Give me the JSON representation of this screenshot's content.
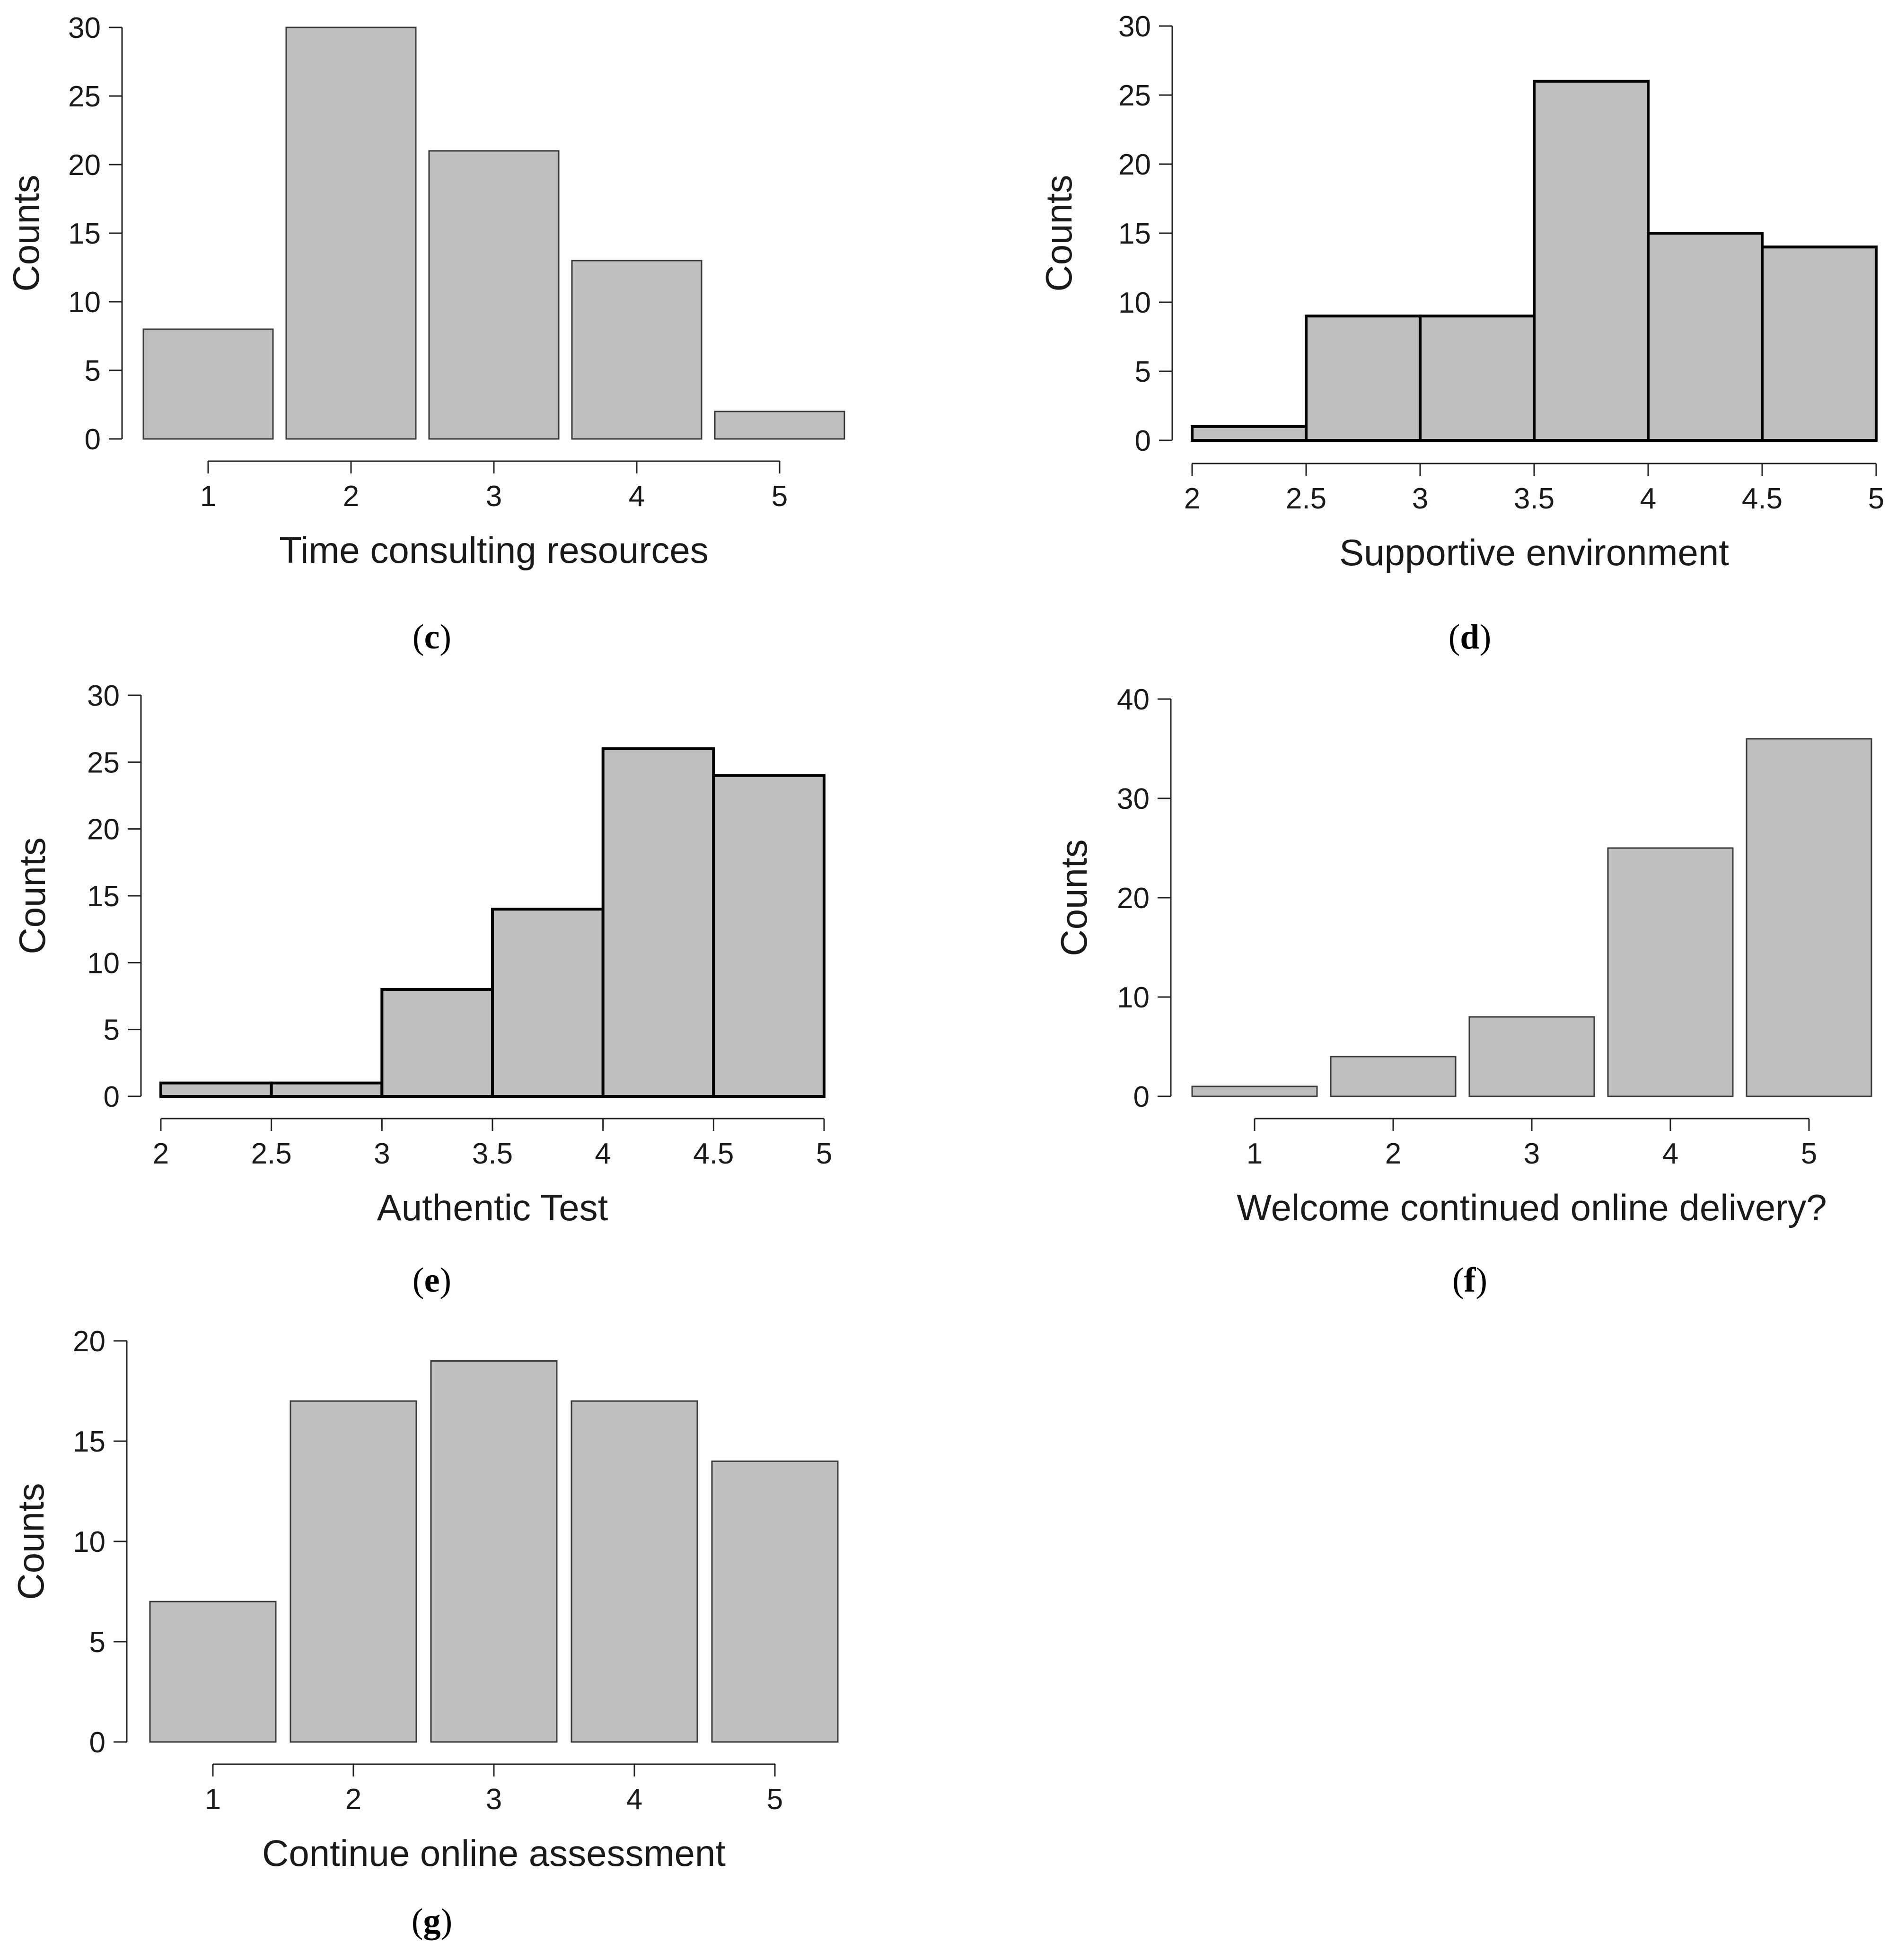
{
  "chart_data": [
    {
      "id": "c",
      "panel_label": "c",
      "type": "bar",
      "xlabel": "Time consulting resources",
      "ylabel": "Counts",
      "categories": [
        "1",
        "2",
        "3",
        "4",
        "5"
      ],
      "values": [
        8,
        30,
        21,
        13,
        2
      ],
      "ylim": [
        0,
        30
      ],
      "yticks": [
        0,
        5,
        10,
        15,
        20,
        25,
        30
      ],
      "grid": false
    },
    {
      "id": "d",
      "panel_label": "d",
      "type": "histogram",
      "xlabel": "Supportive environment",
      "ylabel": "Counts",
      "bin_edges": [
        2,
        2.5,
        3,
        3.5,
        4,
        4.5,
        5
      ],
      "xtick_labels": [
        "2",
        "2.5",
        "3",
        "3.5",
        "4",
        "4.5",
        "5"
      ],
      "values": [
        1,
        9,
        9,
        26,
        15,
        14
      ],
      "ylim": [
        0,
        30
      ],
      "yticks": [
        0,
        5,
        10,
        15,
        20,
        25,
        30
      ],
      "grid": false
    },
    {
      "id": "e",
      "panel_label": "e",
      "type": "histogram",
      "xlabel": "Authentic Test",
      "ylabel": "Counts",
      "bin_edges": [
        2,
        2.5,
        3,
        3.5,
        4,
        4.5,
        5
      ],
      "xtick_labels": [
        "2",
        "2.5",
        "3",
        "3.5",
        "4",
        "4.5",
        "5"
      ],
      "values": [
        1,
        1,
        8,
        14,
        26,
        24
      ],
      "ylim": [
        0,
        30
      ],
      "yticks": [
        0,
        5,
        10,
        15,
        20,
        25,
        30
      ],
      "grid": false
    },
    {
      "id": "f",
      "panel_label": "f",
      "type": "bar",
      "xlabel": "Welcome continued online delivery?",
      "ylabel": "Counts",
      "categories": [
        "1",
        "2",
        "3",
        "4",
        "5"
      ],
      "values": [
        1,
        4,
        8,
        25,
        36
      ],
      "ylim": [
        0,
        40
      ],
      "yticks": [
        0,
        10,
        20,
        30,
        40
      ],
      "grid": false
    },
    {
      "id": "g",
      "panel_label": "g",
      "type": "bar",
      "xlabel": "Continue online assessment",
      "ylabel": "Counts",
      "categories": [
        "1",
        "2",
        "3",
        "4",
        "5"
      ],
      "values": [
        7,
        17,
        19,
        17,
        14
      ],
      "ylim": [
        0,
        20
      ],
      "yticks": [
        0,
        5,
        10,
        15,
        20
      ],
      "grid": false
    }
  ],
  "colors": {
    "bar_fill": "#bfbfbf",
    "bar_stroke": "#3a3a3a",
    "hist_stroke": "#000000",
    "axis": "#222222"
  }
}
